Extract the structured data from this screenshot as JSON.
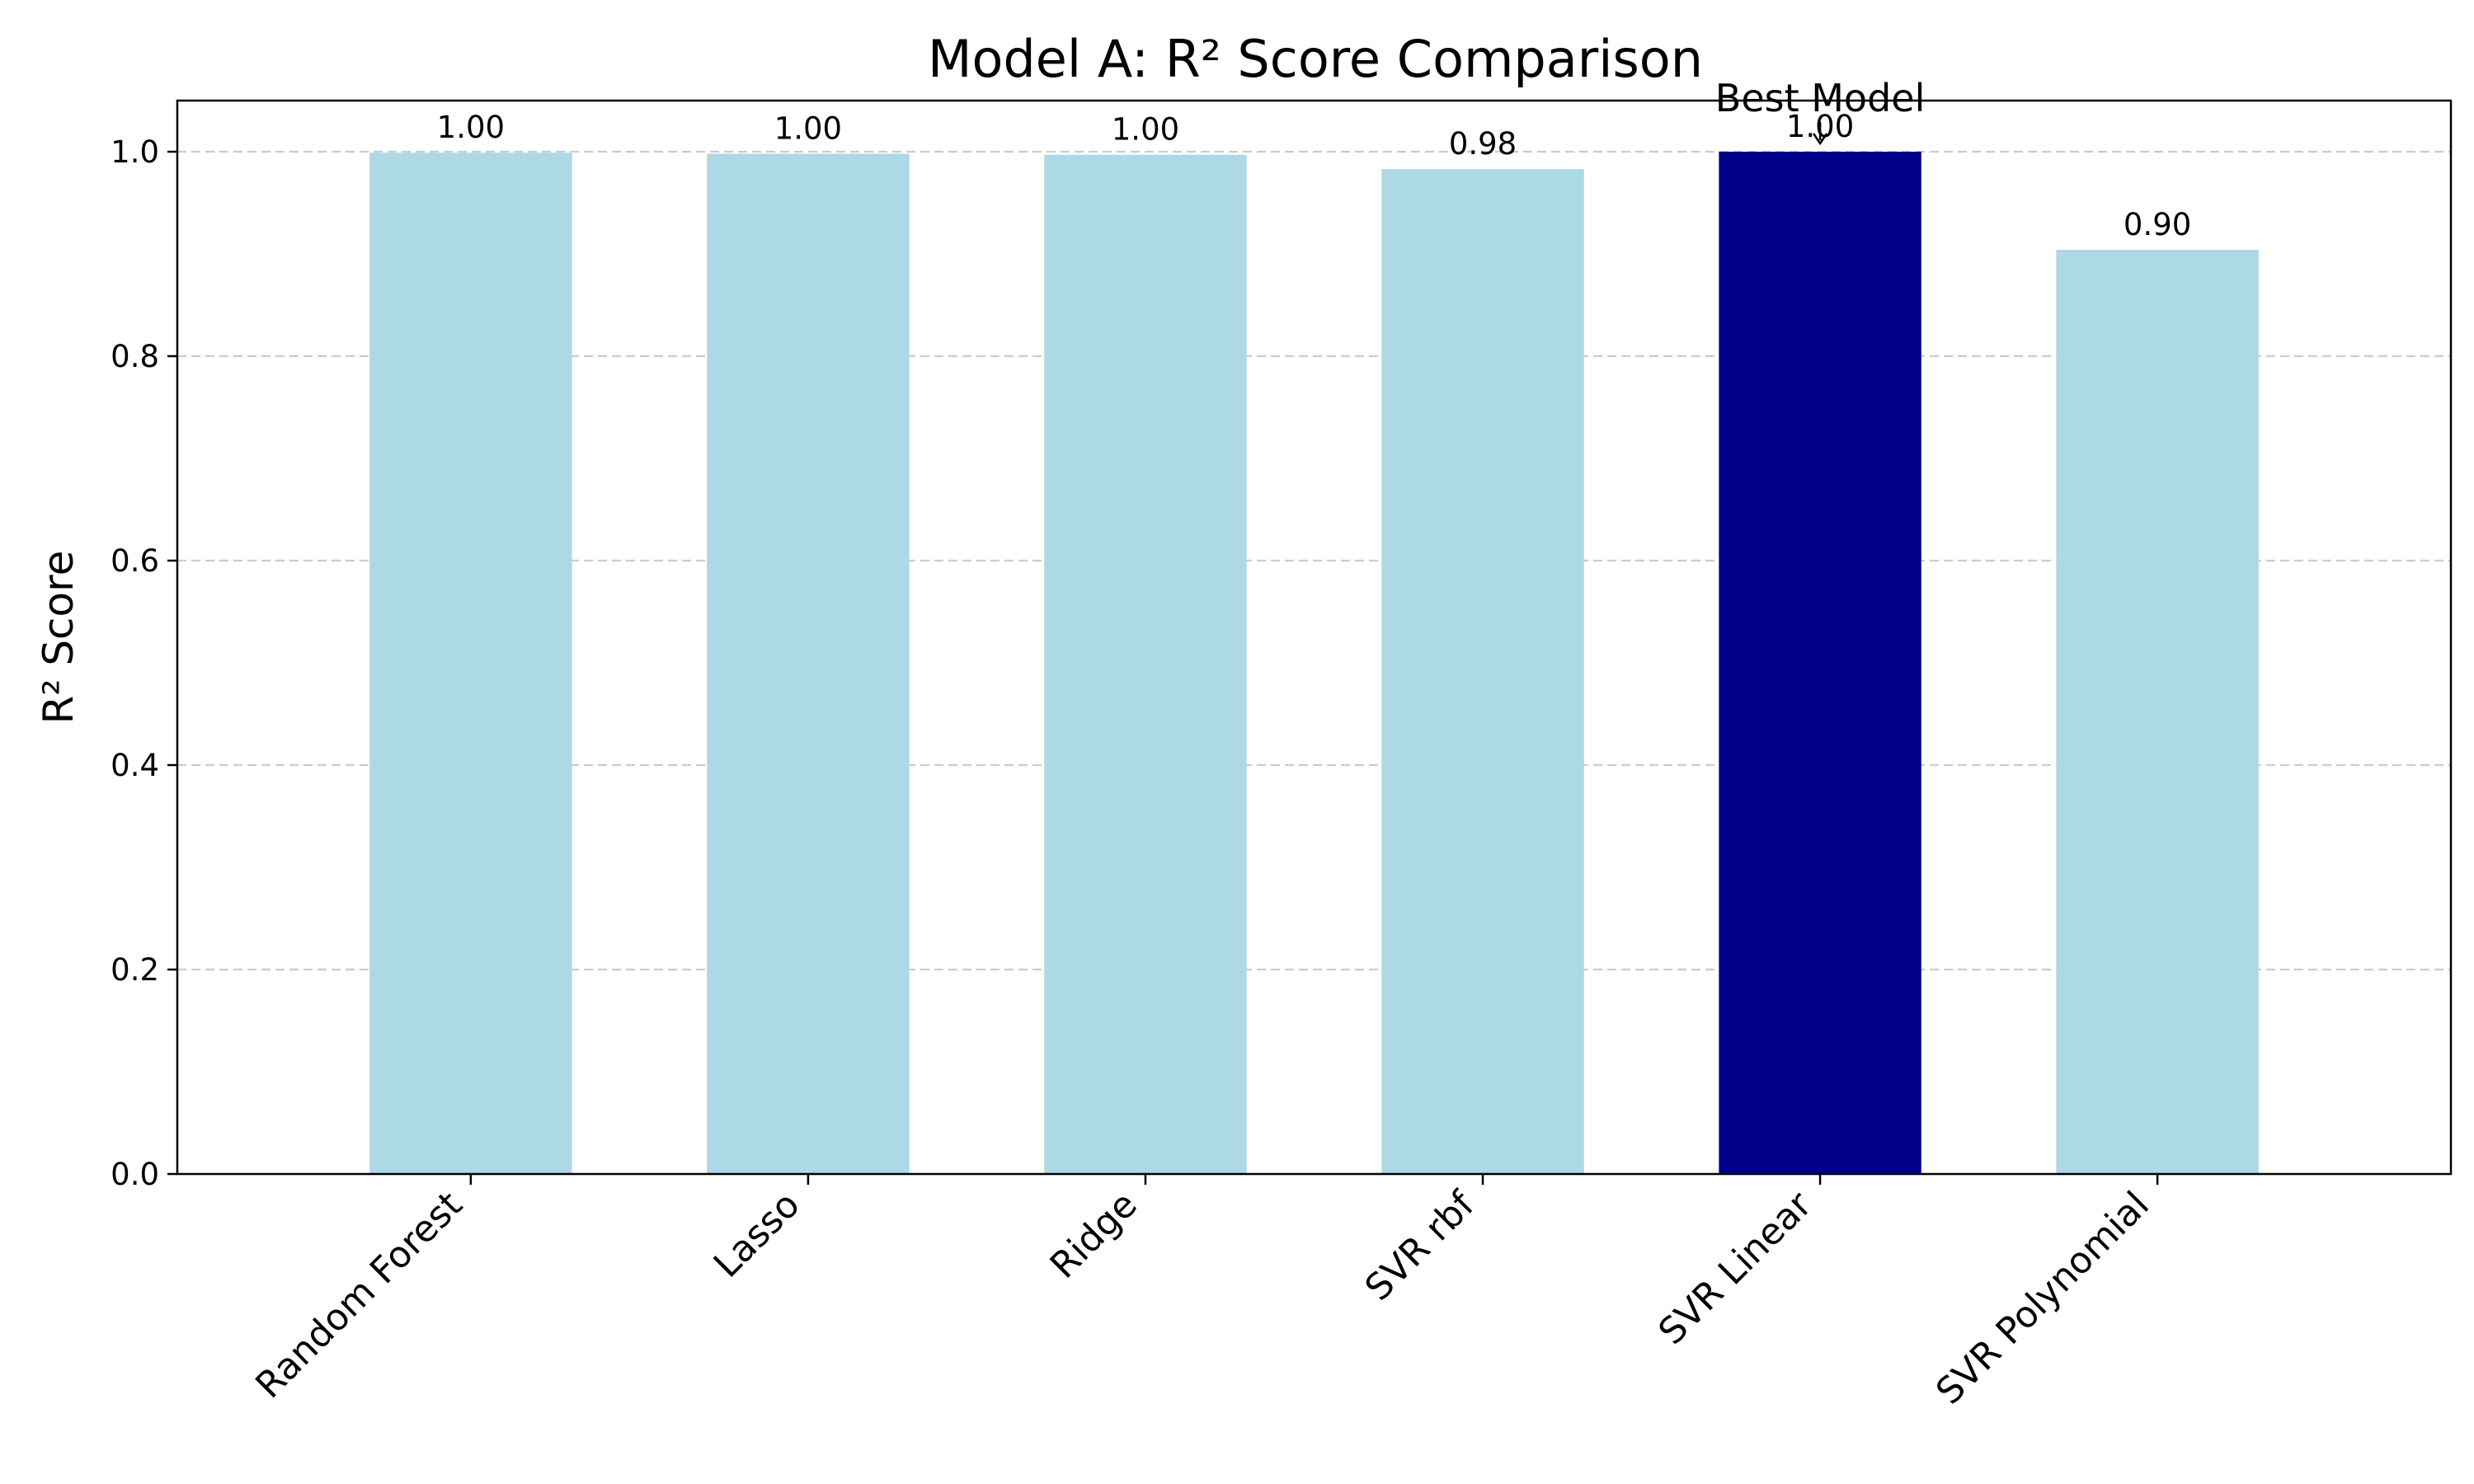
{
  "chart_data": {
    "type": "bar",
    "title": "Model A: R² Score Comparison",
    "xlabel": "",
    "ylabel": "R² Score",
    "categories": [
      "Random Forest",
      "Lasso",
      "Ridge",
      "SVR rbf",
      "SVR Linear",
      "SVR Polynomial"
    ],
    "values": [
      0.999,
      0.998,
      0.997,
      0.983,
      1.0,
      0.904
    ],
    "data_labels": [
      "1.00",
      "1.00",
      "1.00",
      "0.98",
      "1.00",
      "0.90"
    ],
    "ylim": [
      0,
      1.05
    ],
    "yticks": [
      0.0,
      0.2,
      0.4,
      0.6,
      0.8,
      1.0
    ],
    "ytick_labels": [
      "0.0",
      "0.2",
      "0.4",
      "0.6",
      "0.8",
      "1.0"
    ],
    "grid": "y dashed",
    "highlight_index": 4,
    "colors": {
      "bar": "#add8e6",
      "highlight": "#00008b",
      "grid": "#cccccc",
      "axis": "#000000"
    },
    "annotation": {
      "text": "Best Model",
      "target_index": 4
    }
  }
}
